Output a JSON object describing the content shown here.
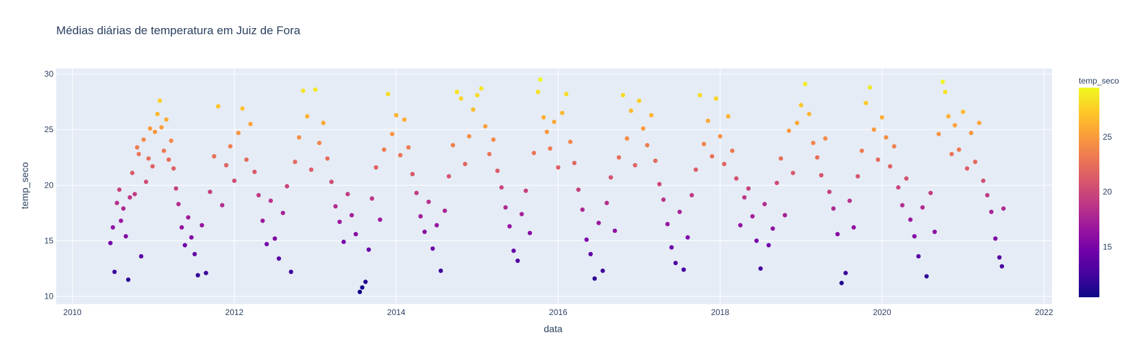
{
  "chart_data": {
    "type": "scatter",
    "title": "Médias diárias de temperatura em Juiz de Fora",
    "xlabel": "data",
    "ylabel": "temp_seco",
    "colorbar_title": "temp_seco",
    "x_range": [
      2009.8,
      2022.1
    ],
    "y_range": [
      9.3,
      30.5
    ],
    "x_ticks": [
      2010,
      2012,
      2014,
      2016,
      2018,
      2020,
      2022
    ],
    "y_ticks": [
      10,
      15,
      20,
      25,
      30
    ],
    "color_range": [
      10.4,
      29.5
    ],
    "colorbar_ticks": [
      15,
      20,
      25
    ],
    "colorscale": [
      "#0d0887",
      "#46039f",
      "#7201a8",
      "#9c179e",
      "#bd3786",
      "#d8576b",
      "#ed7953",
      "#fb9f3a",
      "#fdca26",
      "#f0f921"
    ],
    "x_start": 2010.45,
    "x_end": 2021.5,
    "grid": true,
    "plot_background": "#e5ecf6",
    "marker_color_by": "temp_seco",
    "series": [
      {
        "name": "temp_seco",
        "points": [
          [
            2010.47,
            14.8
          ],
          [
            2010.5,
            16.2
          ],
          [
            2010.52,
            12.2
          ],
          [
            2010.55,
            18.4
          ],
          [
            2010.58,
            19.6
          ],
          [
            2010.6,
            16.8
          ],
          [
            2010.63,
            17.9
          ],
          [
            2010.66,
            15.4
          ],
          [
            2010.69,
            11.5
          ],
          [
            2010.71,
            18.9
          ],
          [
            2010.74,
            21.1
          ],
          [
            2010.77,
            19.2
          ],
          [
            2010.8,
            23.4
          ],
          [
            2010.82,
            22.8
          ],
          [
            2010.85,
            13.6
          ],
          [
            2010.88,
            24.1
          ],
          [
            2010.91,
            20.3
          ],
          [
            2010.94,
            22.4
          ],
          [
            2010.96,
            25.1
          ],
          [
            2010.99,
            21.7
          ],
          [
            2011.02,
            24.8
          ],
          [
            2011.05,
            26.4
          ],
          [
            2011.08,
            27.6
          ],
          [
            2011.1,
            25.2
          ],
          [
            2011.13,
            23.1
          ],
          [
            2011.16,
            25.9
          ],
          [
            2011.19,
            22.3
          ],
          [
            2011.22,
            24.0
          ],
          [
            2011.25,
            21.5
          ],
          [
            2011.28,
            19.7
          ],
          [
            2011.31,
            18.3
          ],
          [
            2011.35,
            16.2
          ],
          [
            2011.39,
            14.6
          ],
          [
            2011.43,
            17.1
          ],
          [
            2011.47,
            15.3
          ],
          [
            2011.51,
            13.8
          ],
          [
            2011.55,
            11.9
          ],
          [
            2011.6,
            16.4
          ],
          [
            2011.65,
            12.1
          ],
          [
            2011.7,
            19.4
          ],
          [
            2011.75,
            22.6
          ],
          [
            2011.8,
            27.1
          ],
          [
            2011.85,
            18.2
          ],
          [
            2011.9,
            21.8
          ],
          [
            2011.95,
            23.5
          ],
          [
            2012.0,
            20.4
          ],
          [
            2012.05,
            24.7
          ],
          [
            2012.1,
            26.9
          ],
          [
            2012.15,
            22.3
          ],
          [
            2012.2,
            25.5
          ],
          [
            2012.25,
            21.2
          ],
          [
            2012.3,
            19.1
          ],
          [
            2012.35,
            16.8
          ],
          [
            2012.4,
            14.7
          ],
          [
            2012.45,
            18.6
          ],
          [
            2012.5,
            15.2
          ],
          [
            2012.55,
            13.4
          ],
          [
            2012.6,
            17.5
          ],
          [
            2012.65,
            19.9
          ],
          [
            2012.7,
            12.2
          ],
          [
            2012.75,
            22.1
          ],
          [
            2012.8,
            24.3
          ],
          [
            2012.85,
            28.5
          ],
          [
            2012.9,
            26.2
          ],
          [
            2012.95,
            21.4
          ],
          [
            2013.0,
            28.6
          ],
          [
            2013.05,
            23.8
          ],
          [
            2013.1,
            25.6
          ],
          [
            2013.15,
            22.4
          ],
          [
            2013.2,
            20.3
          ],
          [
            2013.25,
            18.1
          ],
          [
            2013.3,
            16.7
          ],
          [
            2013.35,
            14.9
          ],
          [
            2013.4,
            19.2
          ],
          [
            2013.45,
            17.3
          ],
          [
            2013.5,
            15.6
          ],
          [
            2013.55,
            10.4
          ],
          [
            2013.58,
            10.8
          ],
          [
            2013.62,
            11.3
          ],
          [
            2013.66,
            14.2
          ],
          [
            2013.7,
            18.8
          ],
          [
            2013.75,
            21.6
          ],
          [
            2013.8,
            16.9
          ],
          [
            2013.85,
            23.2
          ],
          [
            2013.9,
            28.2
          ],
          [
            2013.95,
            24.6
          ],
          [
            2014.0,
            26.3
          ],
          [
            2014.05,
            22.7
          ],
          [
            2014.1,
            25.9
          ],
          [
            2014.15,
            23.4
          ],
          [
            2014.2,
            21.0
          ],
          [
            2014.25,
            19.3
          ],
          [
            2014.3,
            17.2
          ],
          [
            2014.35,
            15.8
          ],
          [
            2014.4,
            18.5
          ],
          [
            2014.45,
            14.3
          ],
          [
            2014.5,
            16.4
          ],
          [
            2014.55,
            12.3
          ],
          [
            2014.6,
            17.7
          ],
          [
            2014.65,
            20.8
          ],
          [
            2014.7,
            23.6
          ],
          [
            2014.75,
            28.4
          ],
          [
            2014.8,
            27.8
          ],
          [
            2014.85,
            21.9
          ],
          [
            2014.9,
            24.4
          ],
          [
            2014.95,
            26.8
          ],
          [
            2015.0,
            28.1
          ],
          [
            2015.05,
            28.7
          ],
          [
            2015.1,
            25.3
          ],
          [
            2015.15,
            22.8
          ],
          [
            2015.2,
            24.1
          ],
          [
            2015.25,
            21.3
          ],
          [
            2015.3,
            19.8
          ],
          [
            2015.35,
            18.0
          ],
          [
            2015.4,
            16.3
          ],
          [
            2015.45,
            14.1
          ],
          [
            2015.5,
            13.2
          ],
          [
            2015.55,
            17.4
          ],
          [
            2015.6,
            19.5
          ],
          [
            2015.65,
            15.7
          ],
          [
            2015.7,
            22.9
          ],
          [
            2015.75,
            28.4
          ],
          [
            2015.78,
            29.5
          ],
          [
            2015.82,
            26.1
          ],
          [
            2015.86,
            24.8
          ],
          [
            2015.9,
            23.3
          ],
          [
            2015.95,
            25.7
          ],
          [
            2016.0,
            21.6
          ],
          [
            2016.05,
            26.5
          ],
          [
            2016.1,
            28.2
          ],
          [
            2016.15,
            23.9
          ],
          [
            2016.2,
            22.0
          ],
          [
            2016.25,
            19.6
          ],
          [
            2016.3,
            17.8
          ],
          [
            2016.35,
            15.1
          ],
          [
            2016.4,
            13.8
          ],
          [
            2016.45,
            11.6
          ],
          [
            2016.5,
            16.6
          ],
          [
            2016.55,
            12.3
          ],
          [
            2016.6,
            18.4
          ],
          [
            2016.65,
            20.7
          ],
          [
            2016.7,
            15.9
          ],
          [
            2016.75,
            22.5
          ],
          [
            2016.8,
            28.1
          ],
          [
            2016.85,
            24.2
          ],
          [
            2016.9,
            26.7
          ],
          [
            2016.95,
            21.8
          ],
          [
            2017.0,
            27.6
          ],
          [
            2017.05,
            25.1
          ],
          [
            2017.1,
            23.6
          ],
          [
            2017.15,
            26.3
          ],
          [
            2017.2,
            22.2
          ],
          [
            2017.25,
            20.1
          ],
          [
            2017.3,
            18.7
          ],
          [
            2017.35,
            16.5
          ],
          [
            2017.4,
            14.4
          ],
          [
            2017.45,
            13.0
          ],
          [
            2017.5,
            17.6
          ],
          [
            2017.55,
            12.4
          ],
          [
            2017.6,
            15.3
          ],
          [
            2017.65,
            19.1
          ],
          [
            2017.7,
            21.4
          ],
          [
            2017.75,
            28.1
          ],
          [
            2017.8,
            23.7
          ],
          [
            2017.85,
            25.8
          ],
          [
            2017.9,
            22.6
          ],
          [
            2017.95,
            27.8
          ],
          [
            2018.0,
            24.4
          ],
          [
            2018.05,
            21.9
          ],
          [
            2018.1,
            26.2
          ],
          [
            2018.15,
            23.1
          ],
          [
            2018.2,
            20.6
          ],
          [
            2018.25,
            16.4
          ],
          [
            2018.3,
            18.9
          ],
          [
            2018.35,
            19.7
          ],
          [
            2018.4,
            17.2
          ],
          [
            2018.45,
            15.0
          ],
          [
            2018.5,
            12.5
          ],
          [
            2018.55,
            18.3
          ],
          [
            2018.6,
            14.6
          ],
          [
            2018.65,
            16.1
          ],
          [
            2018.7,
            20.2
          ],
          [
            2018.75,
            22.4
          ],
          [
            2018.8,
            17.3
          ],
          [
            2018.85,
            24.9
          ],
          [
            2018.9,
            21.1
          ],
          [
            2018.95,
            25.6
          ],
          [
            2019.0,
            27.2
          ],
          [
            2019.05,
            29.1
          ],
          [
            2019.1,
            26.4
          ],
          [
            2019.15,
            23.8
          ],
          [
            2019.2,
            22.5
          ],
          [
            2019.25,
            20.9
          ],
          [
            2019.3,
            24.2
          ],
          [
            2019.35,
            19.4
          ],
          [
            2019.4,
            17.9
          ],
          [
            2019.45,
            15.6
          ],
          [
            2019.5,
            11.2
          ],
          [
            2019.55,
            12.1
          ],
          [
            2019.6,
            18.6
          ],
          [
            2019.65,
            16.2
          ],
          [
            2019.7,
            20.8
          ],
          [
            2019.75,
            23.1
          ],
          [
            2019.8,
            27.4
          ],
          [
            2019.85,
            28.8
          ],
          [
            2019.9,
            25.0
          ],
          [
            2019.95,
            22.3
          ],
          [
            2020.0,
            26.1
          ],
          [
            2020.05,
            24.3
          ],
          [
            2020.1,
            21.7
          ],
          [
            2020.15,
            23.5
          ],
          [
            2020.2,
            19.8
          ],
          [
            2020.25,
            18.2
          ],
          [
            2020.3,
            20.6
          ],
          [
            2020.35,
            16.9
          ],
          [
            2020.4,
            15.4
          ],
          [
            2020.45,
            13.6
          ],
          [
            2020.5,
            18.0
          ],
          [
            2020.55,
            11.8
          ],
          [
            2020.6,
            19.3
          ],
          [
            2020.65,
            15.8
          ],
          [
            2020.7,
            24.6
          ],
          [
            2020.75,
            29.3
          ],
          [
            2020.78,
            28.4
          ],
          [
            2020.82,
            26.2
          ],
          [
            2020.86,
            22.8
          ],
          [
            2020.9,
            25.4
          ],
          [
            2020.95,
            23.2
          ],
          [
            2021.0,
            26.6
          ],
          [
            2021.05,
            21.5
          ],
          [
            2021.1,
            24.7
          ],
          [
            2021.15,
            22.1
          ],
          [
            2021.2,
            25.6
          ],
          [
            2021.25,
            20.4
          ],
          [
            2021.3,
            19.1
          ],
          [
            2021.35,
            17.6
          ],
          [
            2021.4,
            15.2
          ],
          [
            2021.45,
            13.5
          ],
          [
            2021.48,
            12.7
          ],
          [
            2021.5,
            17.9
          ]
        ]
      }
    ]
  }
}
